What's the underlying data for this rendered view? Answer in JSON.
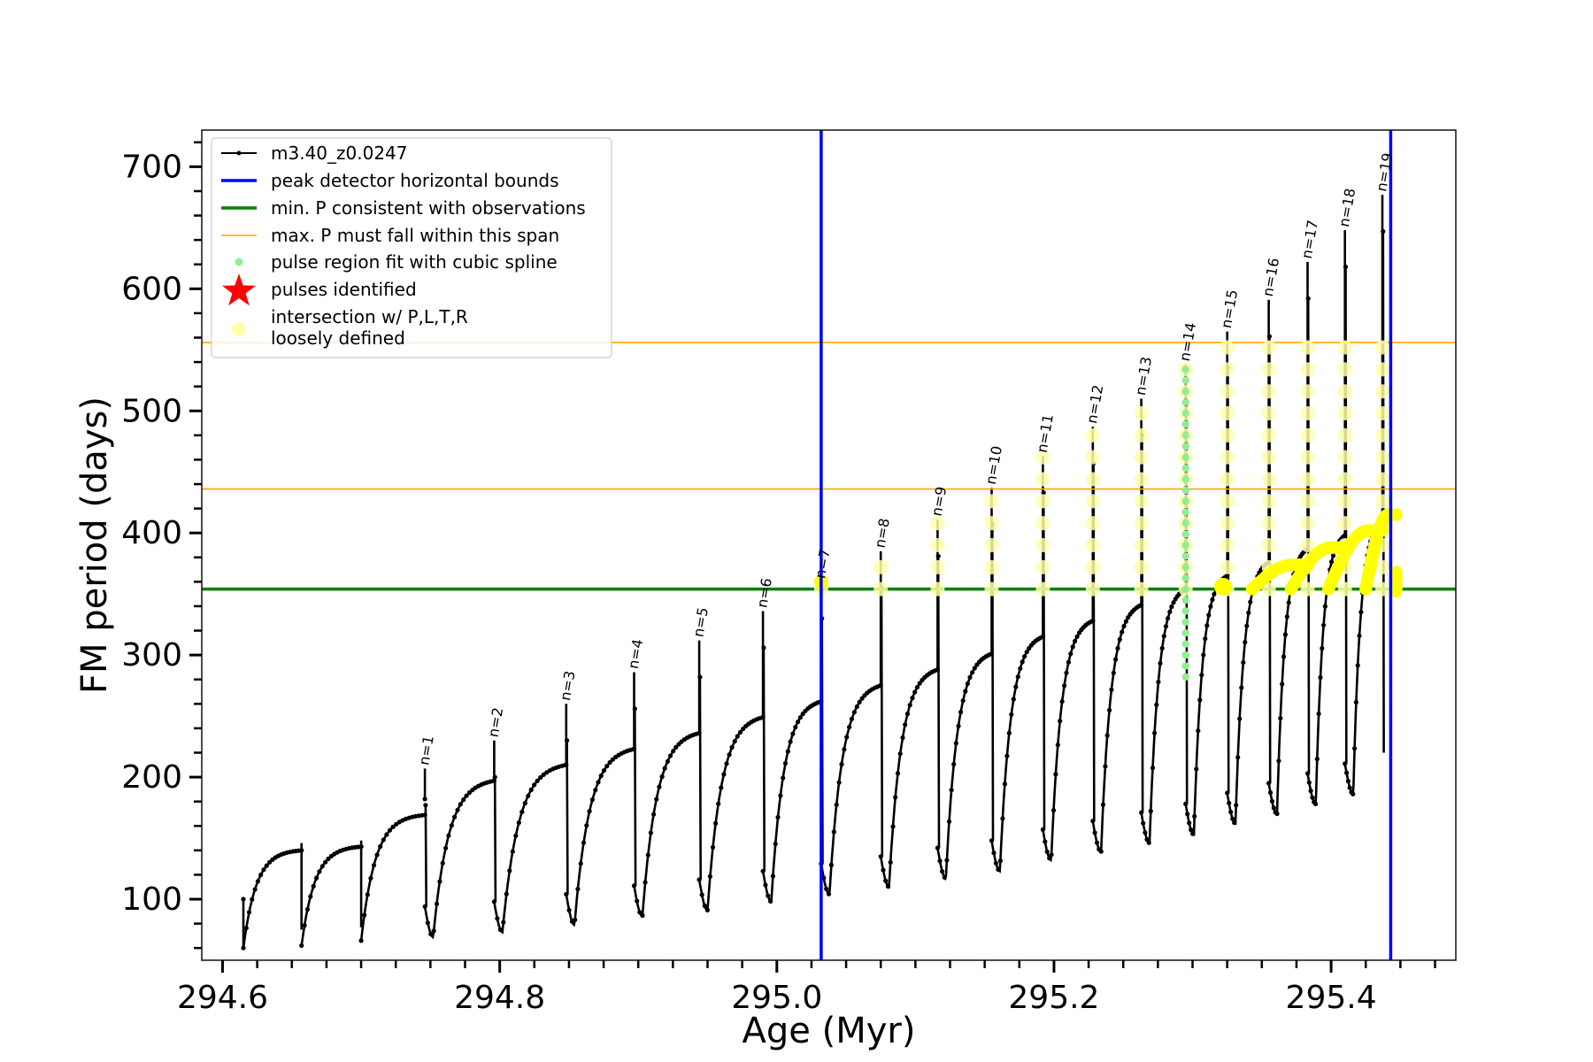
{
  "chart_data": {
    "type": "line",
    "xlabel": "Age (Myr)",
    "ylabel": "FM period (days)",
    "xlim": [
      294.585,
      295.49
    ],
    "ylim": [
      50,
      730
    ],
    "xticks": [
      294.6,
      294.8,
      295.0,
      295.2,
      295.4
    ],
    "xtick_labels": [
      "294.6",
      "294.8",
      "295.0",
      "295.2",
      "295.4"
    ],
    "yticks": [
      100,
      200,
      300,
      400,
      500,
      600,
      700
    ],
    "ytick_labels": [
      "100",
      "200",
      "300",
      "400",
      "500",
      "600",
      "700"
    ],
    "grid": false,
    "legend_position": "top-left",
    "colors": {
      "track": "#000000",
      "bounds": "#0000ff",
      "min_p": "#008000",
      "max_p": "#ffa500",
      "spline": "#90ee90",
      "pulse": "#ff0000",
      "intersect": "#ffff00",
      "loose": "#ffffaa"
    },
    "legend": [
      {
        "label": "m3.40_z0.0247",
        "marker": "line-dot",
        "color": "#000000"
      },
      {
        "label": "peak detector horizontal bounds",
        "marker": "line-thick",
        "color": "#0000ff"
      },
      {
        "label": "min. P consistent with observations",
        "marker": "line-thick",
        "color": "#008000"
      },
      {
        "label": "max. P must fall within this span",
        "marker": "line-thin",
        "color": "#ffa500"
      },
      {
        "label": "pulse region fit with cubic spline",
        "marker": "dot",
        "color": "#90ee90"
      },
      {
        "label": "pulses identified",
        "marker": "star",
        "color": "#ff0000"
      },
      {
        "label": "intersection w/ P,L,T,R",
        "marker": "big-dot",
        "color": "#ffff00"
      },
      {
        "label": "loosely defined",
        "marker": "none",
        "color": "#ffffaa"
      }
    ],
    "vertical_bounds": [
      295.032,
      295.443
    ],
    "min_period": 354,
    "max_period_span": [
      436,
      556
    ],
    "pulses": [
      {
        "label": "n=1",
        "age": 294.746,
        "peak": 207,
        "valley": 69
      },
      {
        "label": "n=2",
        "age": 294.796,
        "peak": 230,
        "valley": 73
      },
      {
        "label": "n=3",
        "age": 294.848,
        "peak": 260,
        "valley": 79
      },
      {
        "label": "n=4",
        "age": 294.897,
        "peak": 286,
        "valley": 86
      },
      {
        "label": "n=5",
        "age": 294.944,
        "peak": 312,
        "valley": 91
      },
      {
        "label": "n=6",
        "age": 294.99,
        "peak": 336,
        "valley": 98
      },
      {
        "label": "n=7",
        "age": 295.032,
        "peak": 360,
        "valley": 104
      },
      {
        "label": "n=8",
        "age": 295.075,
        "peak": 385,
        "valley": 110
      },
      {
        "label": "n=9",
        "age": 295.116,
        "peak": 411,
        "valley": 117
      },
      {
        "label": "n=10",
        "age": 295.155,
        "peak": 437,
        "valley": 123
      },
      {
        "label": "n=11",
        "age": 295.192,
        "peak": 463,
        "valley": 132
      },
      {
        "label": "n=12",
        "age": 295.228,
        "peak": 487,
        "valley": 139
      },
      {
        "label": "n=13",
        "age": 295.263,
        "peak": 510,
        "valley": 146
      },
      {
        "label": "n=14",
        "age": 295.295,
        "peak": 538,
        "valley": 153
      },
      {
        "label": "n=15",
        "age": 295.325,
        "peak": 565,
        "valley": 162
      },
      {
        "label": "n=16",
        "age": 295.355,
        "peak": 591,
        "valley": 170
      },
      {
        "label": "n=17",
        "age": 295.383,
        "peak": 622,
        "valley": 178
      },
      {
        "label": "n=18",
        "age": 295.41,
        "peak": 648,
        "valley": 186
      },
      {
        "label": "n=19",
        "age": 295.437,
        "peak": 677,
        "valley": 195
      }
    ],
    "early_segments": [
      {
        "start": 294.615,
        "end": 294.657,
        "valley": 60,
        "top": 140,
        "spike": 146
      },
      {
        "start": 294.657,
        "end": 294.7,
        "valley": 62,
        "top": 143,
        "spike": 148
      },
      {
        "start": 294.7,
        "end": 294.746,
        "valley": 66,
        "top": 169
      }
    ],
    "plateau_tops": [
      182,
      197,
      210,
      223,
      236,
      249,
      262,
      275,
      288,
      301,
      315,
      328,
      341,
      354,
      365,
      376,
      387,
      398,
      410
    ]
  }
}
